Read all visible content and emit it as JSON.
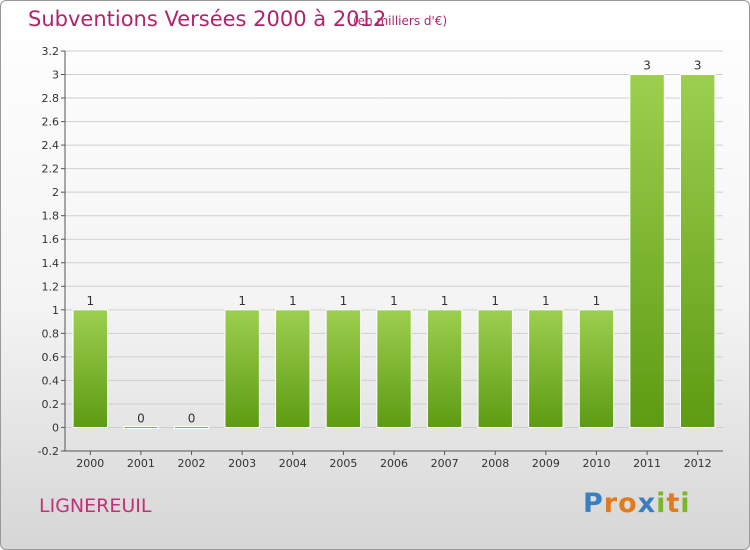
{
  "header": {
    "title": "Subventions Versées 2000 à 2012",
    "subtitle": "(en milliers d'€)"
  },
  "footer": {
    "place": "LIGNEREUIL",
    "logo": {
      "letters": [
        "P",
        "r",
        "o",
        "x",
        "i",
        "t",
        "i"
      ],
      "colors": [
        "#3a7ec2",
        "#e07b1e",
        "#e07b1e",
        "#3a7ec2",
        "#7ab52b",
        "#e07b1e",
        "#7ab52b"
      ]
    }
  },
  "chart_data": {
    "type": "bar",
    "categories": [
      "2000",
      "2001",
      "2002",
      "2003",
      "2004",
      "2005",
      "2006",
      "2007",
      "2008",
      "2009",
      "2010",
      "2011",
      "2012"
    ],
    "values": [
      1,
      0,
      0,
      1,
      1,
      1,
      1,
      1,
      1,
      1,
      1,
      3,
      3
    ],
    "data_labels": [
      "1",
      "0",
      "0",
      "1",
      "1",
      "1",
      "1",
      "1",
      "1",
      "1",
      "1",
      "3",
      "3"
    ],
    "ylim": [
      -0.2,
      3.2
    ],
    "yticks": [
      "-0.2",
      "0",
      "0.2",
      "0.4",
      "0.6",
      "0.8",
      "1",
      "1.2",
      "1.4",
      "1.6",
      "1.8",
      "2",
      "2.2",
      "2.4",
      "2.6",
      "2.8",
      "3",
      "3.2"
    ],
    "ytick_values": [
      -0.2,
      0,
      0.2,
      0.4,
      0.6,
      0.8,
      1,
      1.2,
      1.4,
      1.6,
      1.8,
      2,
      2.2,
      2.4,
      2.6,
      2.8,
      3,
      3.2
    ],
    "colors": {
      "bar_light": "#9dcf4f",
      "bar_dark": "#5d9b12",
      "grid": "#cfcfcf"
    },
    "grid": true,
    "legend": "none"
  }
}
